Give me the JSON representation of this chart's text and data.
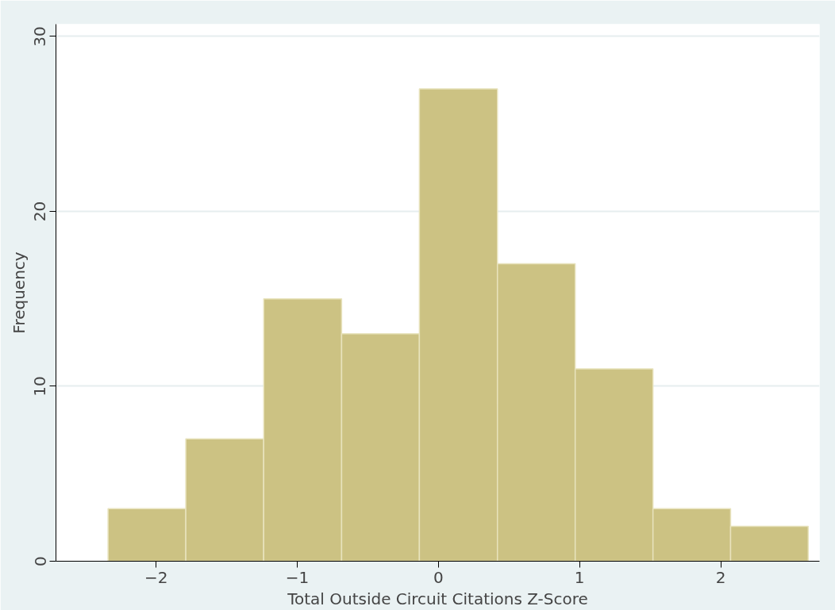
{
  "chart_data": {
    "type": "histogram",
    "xlabel": "Total Outside Circuit Citations Z-Score",
    "ylabel": "Frequency",
    "bins": [
      -2.341,
      -1.79,
      -1.238,
      -0.686,
      -0.135,
      0.418,
      0.969,
      1.52,
      2.07,
      2.62
    ],
    "values": [
      3,
      7,
      15,
      13,
      27,
      17,
      11,
      3,
      2
    ],
    "color": "#ccc283",
    "xlim": [
      -2.71,
      2.7
    ],
    "ylim": [
      0,
      30.7
    ],
    "xticks": [
      -2,
      -1,
      0,
      1,
      2
    ],
    "yticks": [
      0,
      10,
      20,
      30
    ],
    "grid": "y"
  }
}
